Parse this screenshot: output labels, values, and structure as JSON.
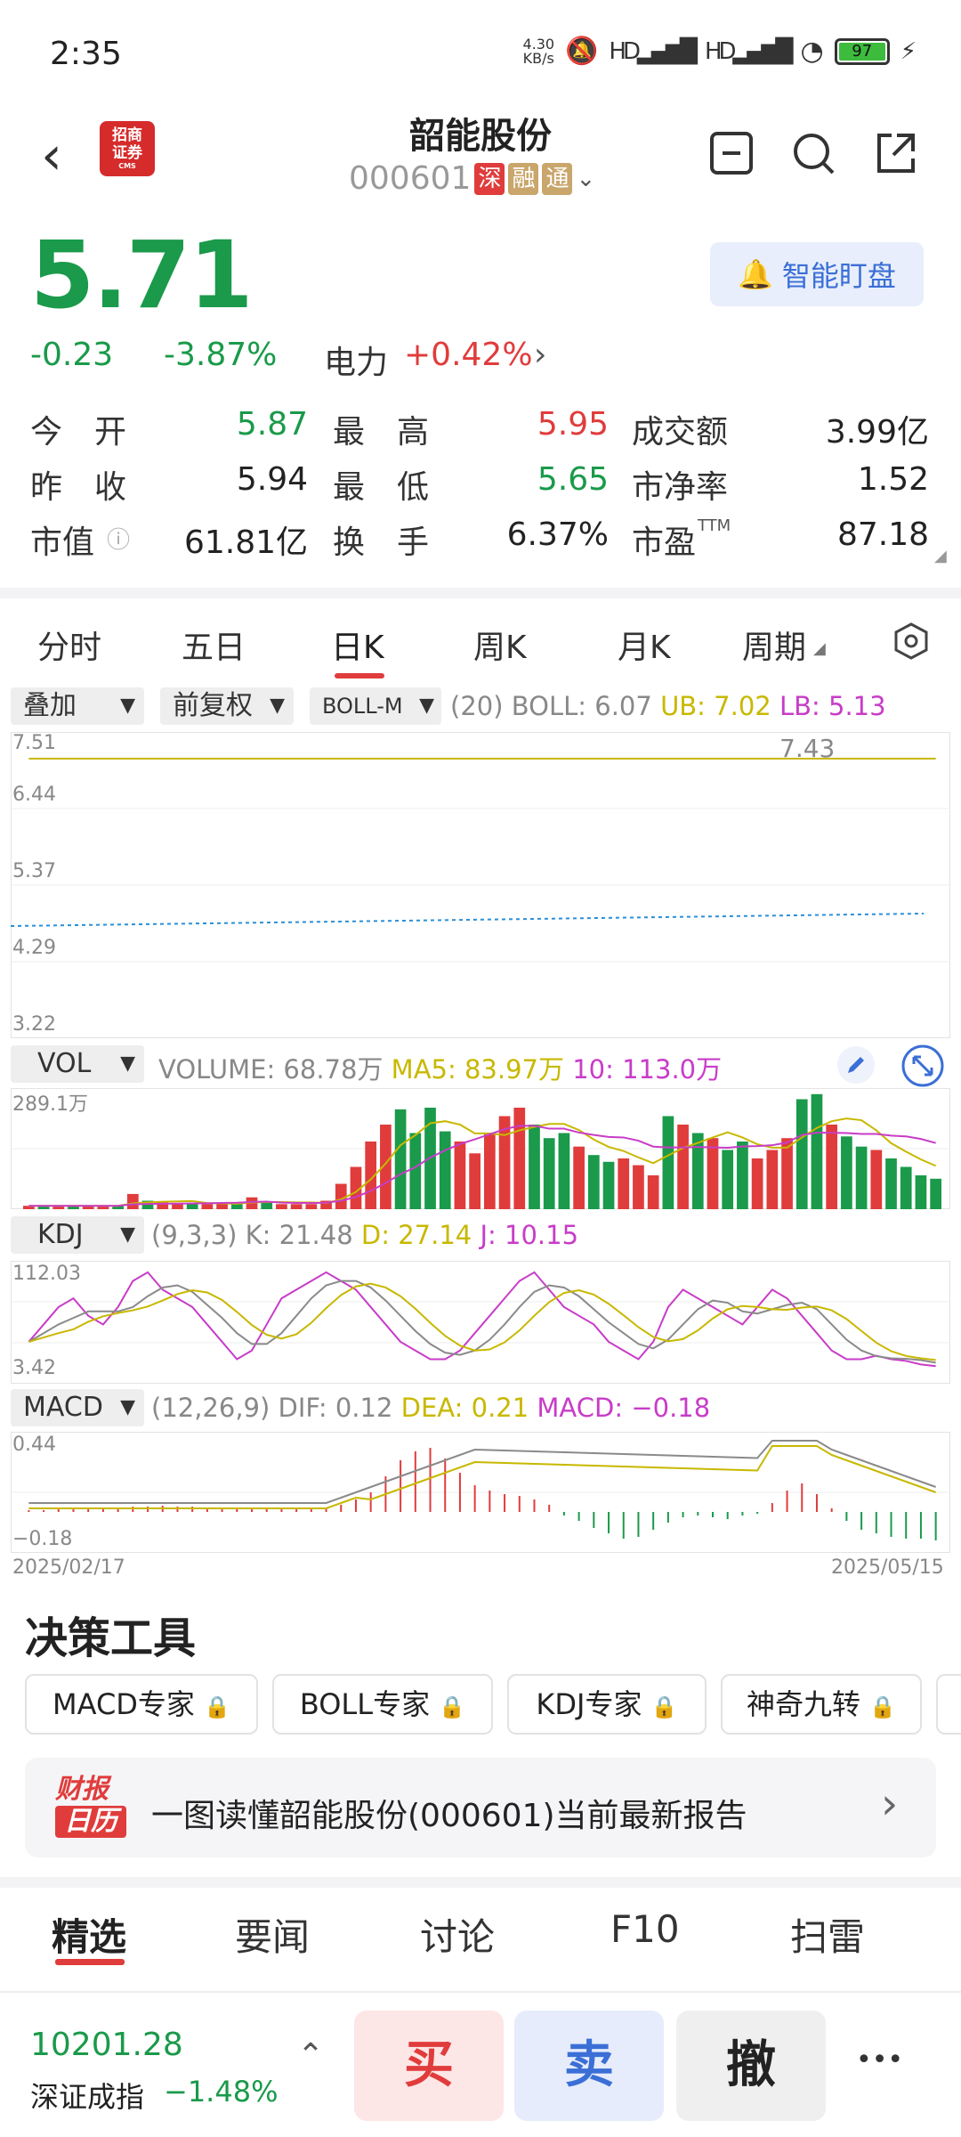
{
  "status": {
    "time": "2:35",
    "net_speed": "4.30\nKB/s",
    "battery": "97"
  },
  "header": {
    "stock_name": "韶能股份",
    "stock_code": "000601",
    "tags": [
      "深",
      "融",
      "通"
    ],
    "logo_text": "招商\n证券",
    "logo_sub": "CMS"
  },
  "quote": {
    "price": "5.71",
    "change": "-0.23",
    "change_pct": "-3.87%",
    "sector": "电力",
    "sector_pct": "+0.42%",
    "watch_label": "智能盯盘"
  },
  "stats": {
    "open_label": "今　开",
    "open": "5.87",
    "high_label": "最　高",
    "high": "5.95",
    "turnover_amt_label": "成交额",
    "turnover_amt": "3.99亿",
    "prev_label": "昨　收",
    "prev": "5.94",
    "low_label": "最　低",
    "low": "5.65",
    "pb_label": "市净率",
    "pb": "1.52",
    "mcap_label": "市值",
    "mcap": "61.81亿",
    "turn_label": "换　手",
    "turn": "6.37%",
    "pe_label": "市盈",
    "pe_sup": "TTM",
    "pe": "87.18"
  },
  "tabs": [
    "分时",
    "五日",
    "日K",
    "周K",
    "月K",
    "周期"
  ],
  "active_tab": "日K",
  "chart_controls": {
    "overlay": "叠加",
    "adjust": "前复权",
    "indicator": "BOLL-M"
  },
  "boll": {
    "param": "(20)",
    "boll": "BOLL: 6.07",
    "ub": "UB: 7.02",
    "lb": "LB: 5.13"
  },
  "vol": {
    "label": "VOL",
    "volume": "VOLUME: 68.78万",
    "ma5": "MA5: 83.97万",
    "ma10": "10: 113.0万",
    "axis_top": "289.1万"
  },
  "kdj": {
    "label": "KDJ",
    "param": "(9,3,3)",
    "k": "K: 21.48",
    "d": "D: 27.14",
    "j": "J: 10.15",
    "axis_top": "112.03",
    "axis_bottom": "3.42"
  },
  "macd": {
    "label": "MACD",
    "param": "(12,26,9)",
    "dif": "DIF: 0.12",
    "dea": "DEA: 0.21",
    "macd": "MACD: −0.18",
    "axis_top": "0.44",
    "axis_bottom": "−0.18"
  },
  "kline_axis": [
    "7.51",
    "6.44",
    "5.37",
    "4.29",
    "3.22"
  ],
  "kline_peak": "7.43",
  "date_start": "2025/02/17",
  "date_end": "2025/05/15",
  "colors": {
    "up": "#e03c3c",
    "down": "#1a9a4a",
    "ub": "#c8b800",
    "mid": "#8a8a8a",
    "lb": "#c83cc8"
  },
  "tools": {
    "title": "决策工具",
    "items": [
      "MACD专家",
      "BOLL专家",
      "KDJ专家",
      "神奇九转"
    ]
  },
  "report": {
    "logo_top": "财报",
    "logo_bottom": "日历",
    "text": "一图读懂韶能股份(000601)当前最新报告"
  },
  "news_tabs": [
    "精选",
    "要闻",
    "讨论",
    "F10",
    "扫雷"
  ],
  "index": {
    "value": "10201.28",
    "name": "深证成指",
    "pct": "−1.48%"
  },
  "trade": {
    "buy": "买",
    "sell": "卖",
    "cancel": "撤",
    "more": "•••"
  }
}
